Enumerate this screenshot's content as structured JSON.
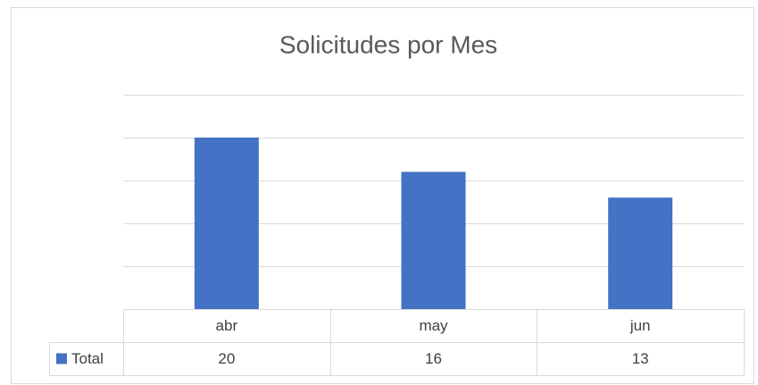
{
  "chart_data": {
    "type": "bar",
    "title": "Solicitudes por Mes",
    "categories": [
      "abr",
      "may",
      "jun"
    ],
    "series": [
      {
        "name": "Total",
        "color": "#4472c4",
        "values": [
          20,
          16,
          13
        ]
      }
    ],
    "ylim": [
      0,
      25
    ],
    "yticks": [
      0,
      5,
      10,
      15,
      20,
      25
    ],
    "grid": true
  }
}
